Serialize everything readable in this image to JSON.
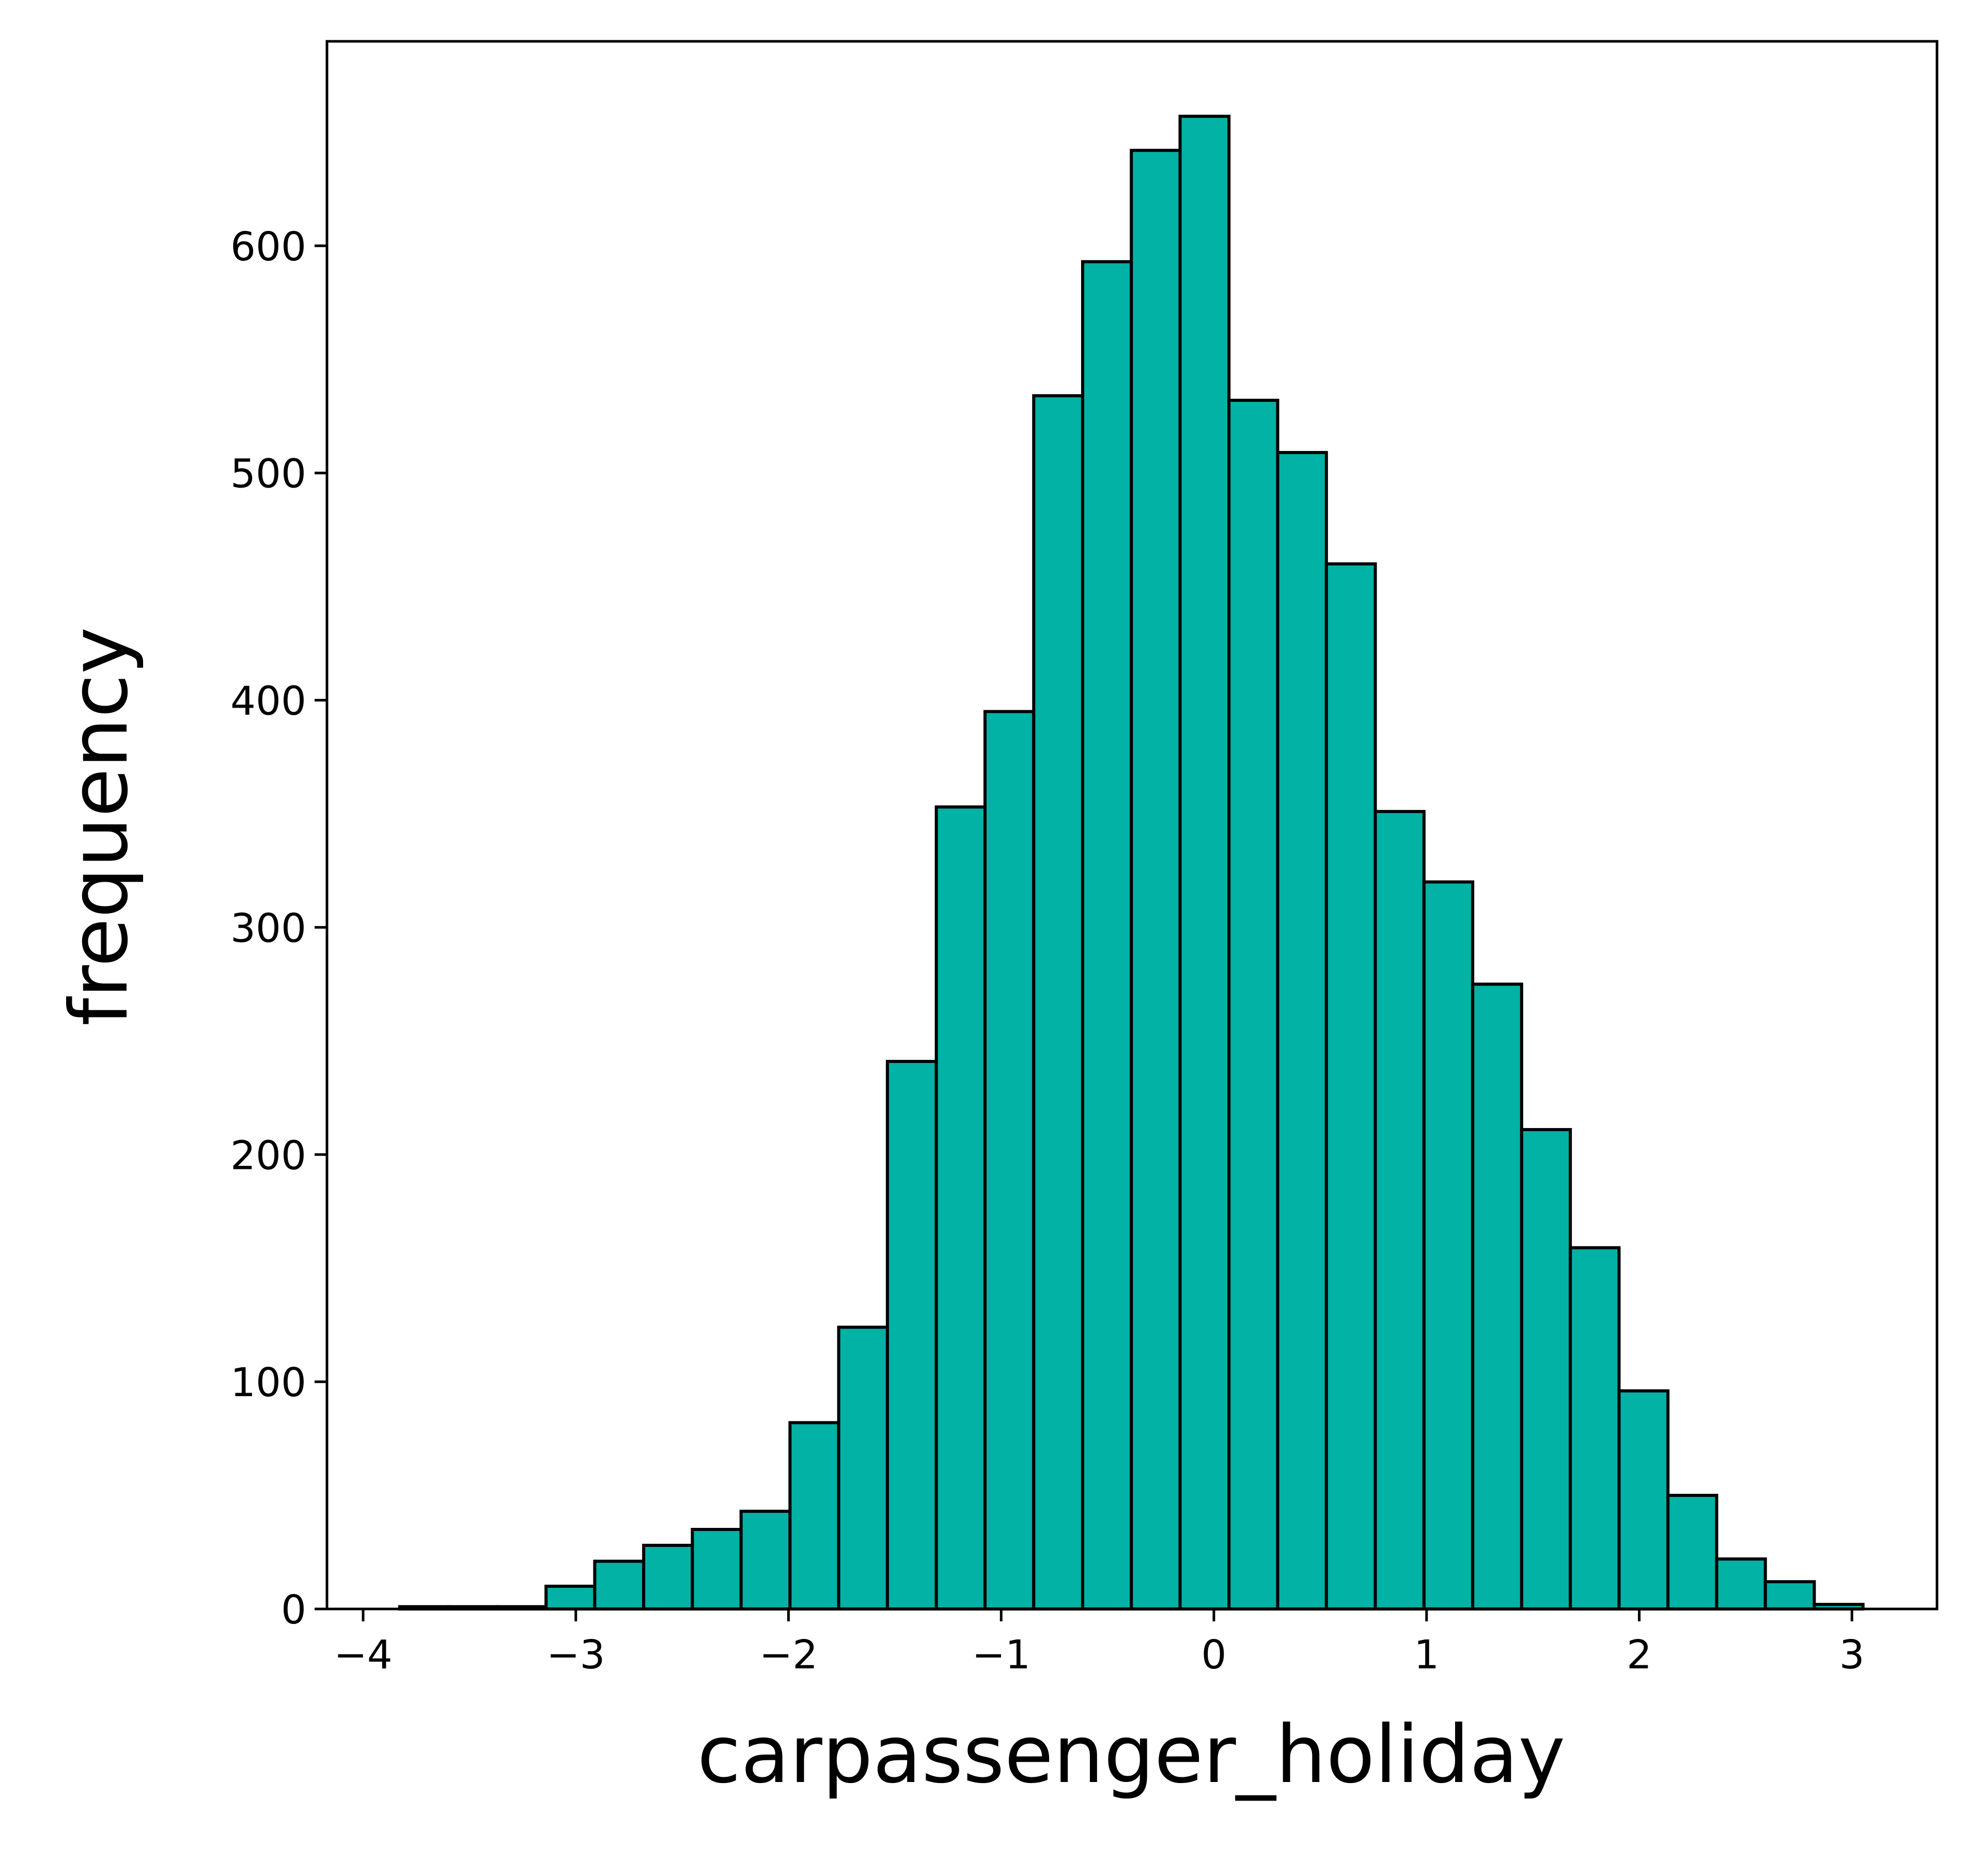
{
  "chart_data": {
    "type": "bar",
    "subtype": "histogram",
    "title": "",
    "xlabel": "carpassenger_holiday",
    "ylabel": "frequency",
    "xlim": [
      -4.17,
      3.4
    ],
    "ylim": [
      0,
      690
    ],
    "x_ticks": [
      -4,
      -3,
      -2,
      -1,
      0,
      1,
      2,
      3
    ],
    "x_tick_labels": [
      "−4",
      "−3",
      "−2",
      "−1",
      "0",
      "1",
      "2",
      "3"
    ],
    "y_ticks": [
      0,
      100,
      200,
      300,
      400,
      500,
      600
    ],
    "y_tick_labels": [
      "0",
      "100",
      "200",
      "300",
      "400",
      "500",
      "600"
    ],
    "grid": false,
    "legend": "none",
    "colors": {
      "bar_fill": "#02b2a5",
      "bar_edge": "#000000",
      "axis": "#000000"
    },
    "bin_edges": [
      -3.828,
      -3.599,
      -3.369,
      -3.14,
      -2.911,
      -2.681,
      -2.452,
      -2.223,
      -1.993,
      -1.764,
      -1.535,
      -1.305,
      -1.076,
      -0.847,
      -0.617,
      -0.388,
      -0.159,
      0.071,
      0.3,
      0.529,
      0.759,
      0.988,
      1.217,
      1.447,
      1.676,
      1.905,
      2.135,
      2.364,
      2.593,
      2.823,
      3.052
    ],
    "values": [
      1,
      1,
      1,
      10,
      21,
      28,
      35,
      43,
      82,
      124,
      241,
      353,
      395,
      534,
      593,
      642,
      657,
      532,
      509,
      460,
      351,
      320,
      275,
      211,
      159,
      96,
      50,
      22,
      12,
      2
    ]
  }
}
